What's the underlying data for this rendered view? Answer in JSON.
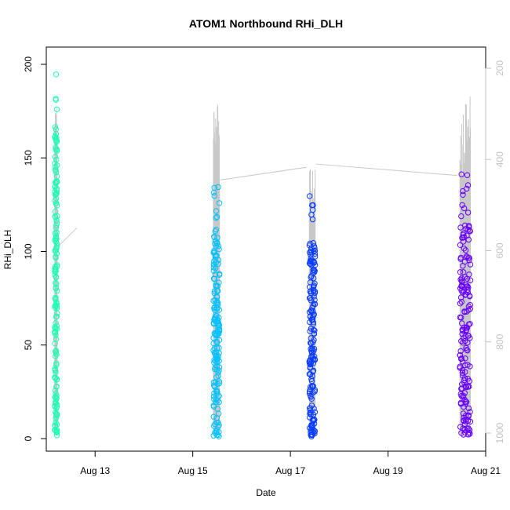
{
  "chart_data": {
    "type": "scatter",
    "title": "ATOM1 Northbound RHi_DLH",
    "xlabel": "Date",
    "ylabel": "RHi_DLH",
    "x_ticks": [
      {
        "date": "2016-08-13",
        "label": "Aug 13"
      },
      {
        "date": "2016-08-15",
        "label": "Aug 15"
      },
      {
        "date": "2016-08-17",
        "label": "Aug 17"
      },
      {
        "date": "2016-08-19",
        "label": "Aug 19"
      },
      {
        "date": "2016-08-21",
        "label": "Aug 21"
      }
    ],
    "xlim": [
      "2016-08-12T00:00",
      "2016-08-21T00:00"
    ],
    "ylim": [
      0,
      200
    ],
    "y_ticks": [
      0,
      50,
      100,
      150,
      200
    ],
    "secondary_axis": {
      "side": "right",
      "quantity": "pressure (reversed)",
      "ylim": [
        1000,
        200
      ],
      "ticks": [
        200,
        400,
        600,
        800,
        1000
      ],
      "color": "#c2c2c2"
    },
    "grid": false,
    "series": [
      {
        "color": "#1effb4",
        "flights": [
          {
            "start": "2016-08-12T04:10",
            "end": "2016-08-12T05:20",
            "max_rhi": 202,
            "min_rhi": 1
          }
        ]
      },
      {
        "color": "#00c2ff",
        "flights": [
          {
            "start": "2016-08-15T10:10",
            "end": "2016-08-15T13:10",
            "max_rhi": 140,
            "min_rhi": 1
          }
        ]
      },
      {
        "color": "#0a3cff",
        "flights": [
          {
            "start": "2016-08-17T09:20",
            "end": "2016-08-17T12:10",
            "max_rhi": 132,
            "min_rhi": 1
          }
        ]
      },
      {
        "color": "#6a00ff",
        "flights": [
          {
            "start": "2016-08-20T11:20",
            "end": "2016-08-20T16:30",
            "max_rhi": 143,
            "min_rhi": 2
          }
        ]
      }
    ],
    "pressure_trace": {
      "color": "#c8c8c8",
      "segments": [
        {
          "start": "2016-08-12T04:10",
          "end": "2016-08-12T05:20",
          "min_pressure": 260
        },
        {
          "start": "2016-08-15T10:10",
          "end": "2016-08-15T13:10",
          "min_pressure": 260
        },
        {
          "start": "2016-08-17T09:20",
          "end": "2016-08-17T12:10",
          "min_pressure": 420
        },
        {
          "start": "2016-08-20T11:20",
          "end": "2016-08-20T16:30",
          "min_pressure": 260
        }
      ],
      "connectors": [
        {
          "from": [
            "2016-08-12T06:00",
            590
          ],
          "to": [
            "2016-08-12T15:00",
            550
          ]
        },
        {
          "from": [
            "2016-08-15T13:30",
            445
          ],
          "to": [
            "2016-08-17T08:00",
            417
          ]
        },
        {
          "from": [
            "2016-08-17T12:30",
            410
          ],
          "to": [
            "2016-08-20T10:00",
            435
          ]
        }
      ]
    }
  }
}
